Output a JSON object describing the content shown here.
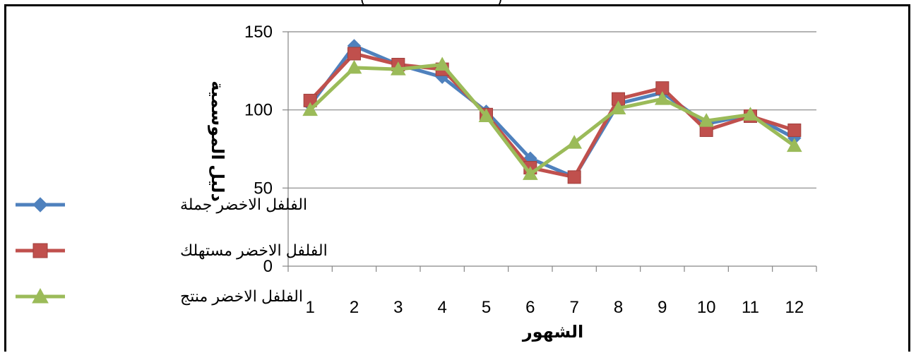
{
  "chart_data": {
    "type": "line",
    "title": "",
    "xlabel": "الشهور",
    "ylabel": "دليل الموسمية",
    "categories": [
      "1",
      "2",
      "3",
      "4",
      "5",
      "6",
      "7",
      "8",
      "9",
      "10",
      "11",
      "12"
    ],
    "ylim": [
      0,
      150
    ],
    "yticks": [
      0,
      50,
      100,
      150
    ],
    "grid": true,
    "legend_position": "left",
    "series": [
      {
        "name": "الفلفل الاخضر جملة",
        "color": "#4f81bd",
        "marker": "diamond",
        "values": [
          103,
          141,
          129,
          121,
          99,
          69,
          57,
          104,
          111,
          91,
          97,
          82
        ]
      },
      {
        "name": "الفلفل الاخضر مستهلك",
        "color": "#c0504d",
        "marker": "square",
        "values": [
          106,
          136,
          129,
          126,
          97,
          63,
          57,
          107,
          114,
          87,
          96,
          87
        ]
      },
      {
        "name": "الفلفل الاخضر منتج",
        "color": "#9bbb59",
        "marker": "triangle",
        "values": [
          100,
          127,
          126,
          129,
          96,
          59,
          79,
          101,
          107,
          93,
          97,
          77
        ]
      }
    ]
  }
}
